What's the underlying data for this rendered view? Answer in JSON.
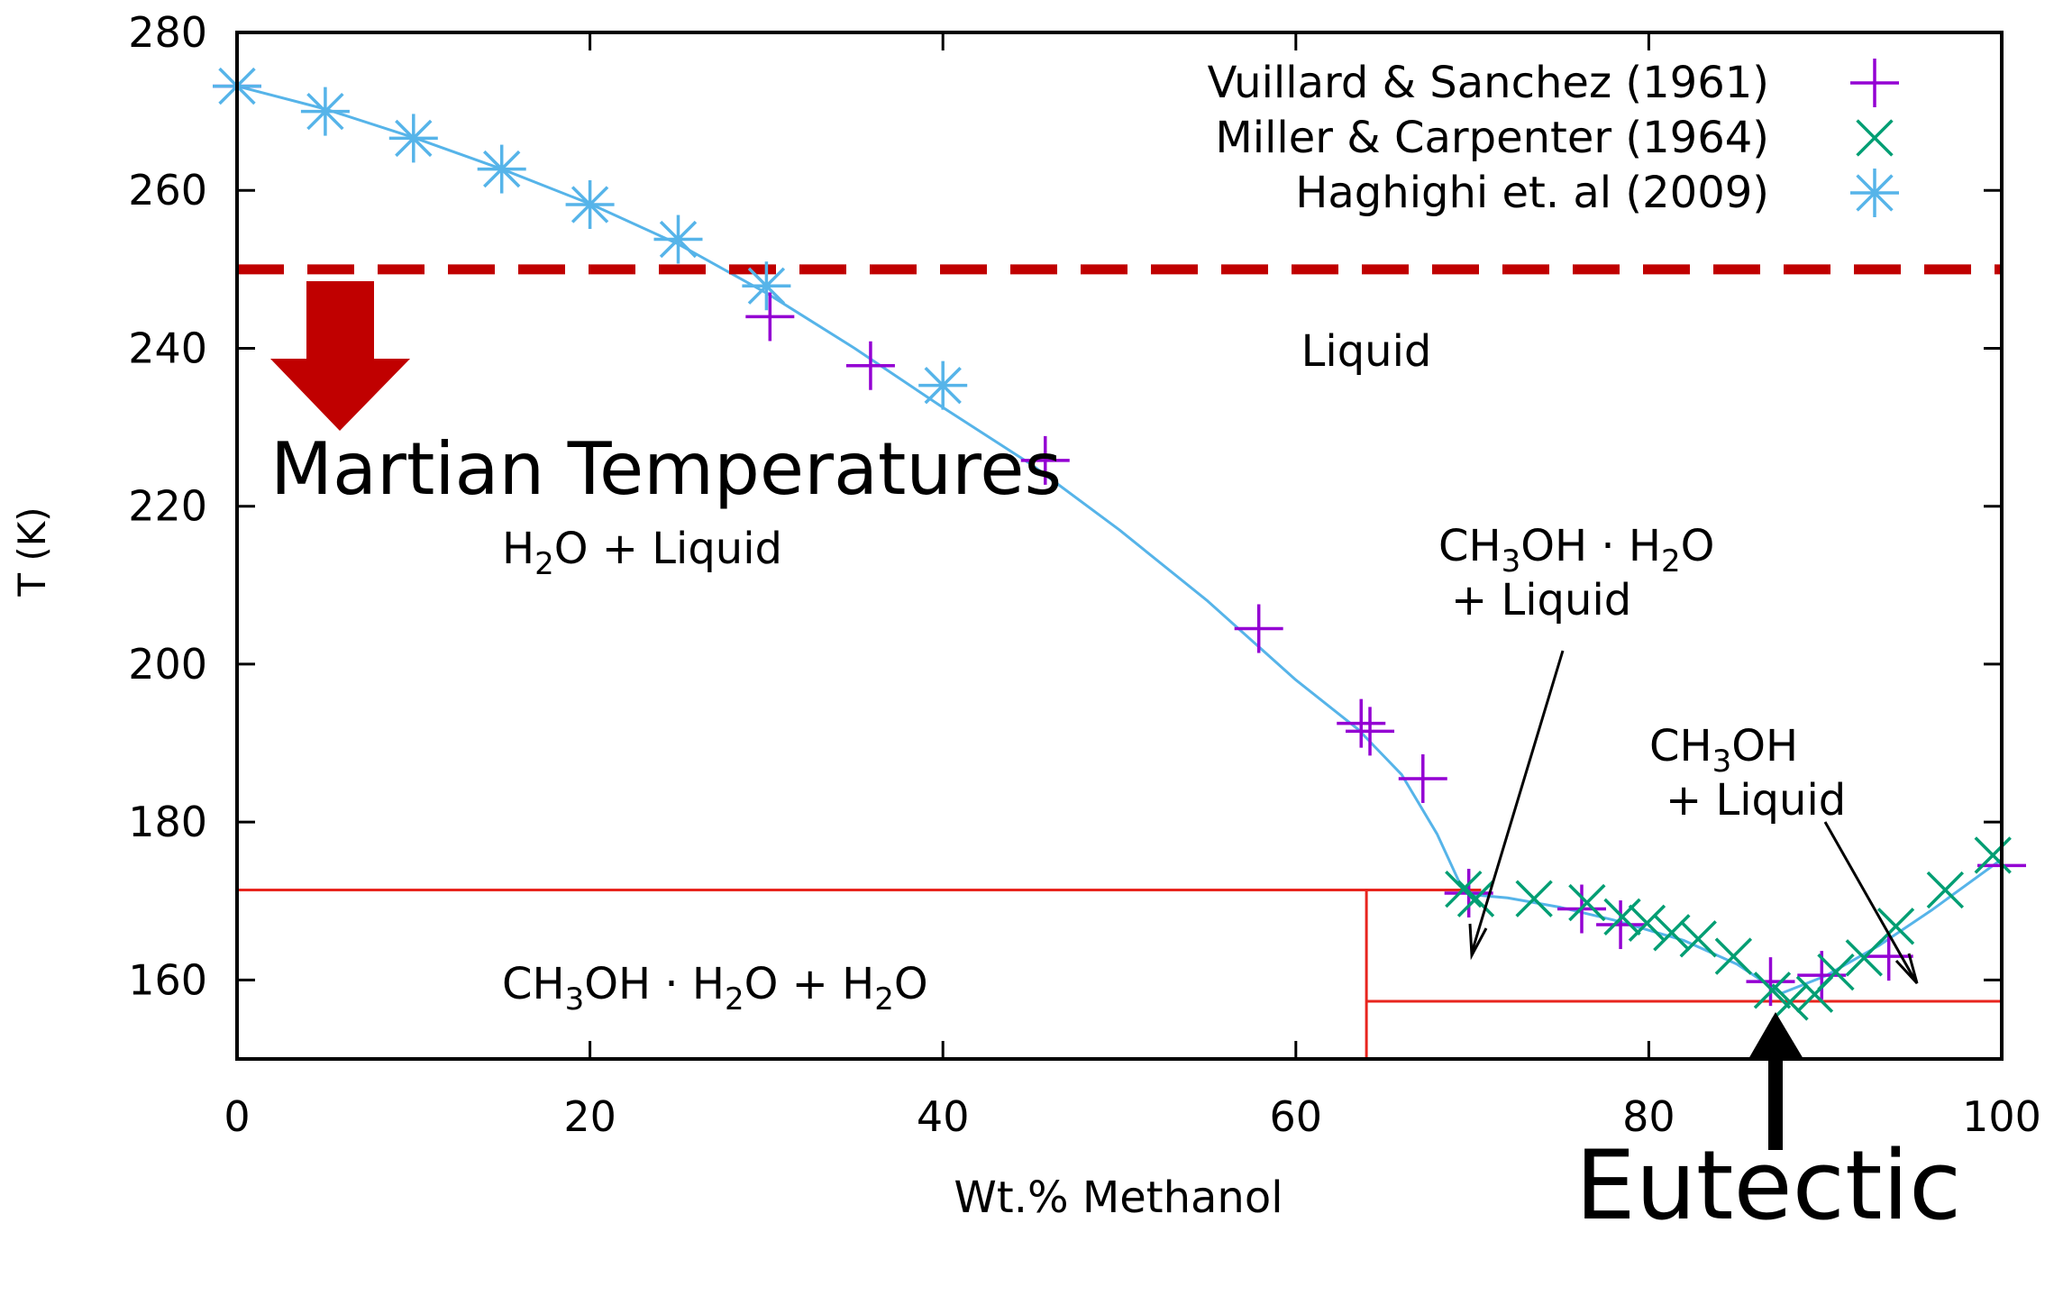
{
  "chart_data": {
    "type": "scatter",
    "xlabel": "Wt.% Methanol",
    "ylabel": "T (K)",
    "xlim": [
      0,
      100
    ],
    "ylim": [
      150,
      280
    ],
    "xticks": [
      0,
      20,
      40,
      60,
      80,
      100
    ],
    "yticks": [
      160,
      180,
      200,
      220,
      240,
      260,
      280
    ],
    "xtick_labels": [
      "0",
      "20",
      "40",
      "60",
      "80",
      "100"
    ],
    "ytick_labels": [
      "160",
      "180",
      "200",
      "220",
      "240",
      "260",
      "280"
    ],
    "legend_position": "top-right",
    "series": [
      {
        "name": "Vuillard & Sanchez (1961)",
        "marker": "plus",
        "color": "#9400d3",
        "x": [
          0,
          30.2,
          35.9,
          45.8,
          57.9,
          63.7,
          64.2,
          67.2,
          69.8,
          76.2,
          78.4,
          86.9,
          89.8,
          93.6,
          100
        ],
        "y": [
          273.2,
          244.0,
          237.8,
          225.8,
          204.5,
          192.5,
          191.5,
          185.5,
          171.0,
          169.0,
          167.0,
          159.8,
          160.6,
          163.0,
          174.5
        ]
      },
      {
        "name": "Miller & Carpenter (1964)",
        "marker": "x",
        "color": "#009e73",
        "x": [
          69.5,
          70.2,
          73.5,
          76.5,
          78.5,
          79.9,
          81.3,
          82.8,
          84.8,
          87.0,
          88.0,
          89.4,
          90.6,
          92.2,
          94.0,
          96.8,
          99.5
        ],
        "y": [
          171.5,
          170.3,
          170.3,
          169.8,
          168.0,
          167.2,
          166.0,
          165.2,
          163.0,
          158.7,
          157.2,
          158.2,
          161.0,
          162.8,
          166.8,
          171.4,
          175.8
        ]
      },
      {
        "name": "Haghighi et. al (2009)",
        "marker": "asterisk",
        "color": "#56b4e9",
        "x": [
          0,
          5,
          10,
          15,
          20,
          25,
          30,
          40
        ],
        "y": [
          273.2,
          270.0,
          266.6,
          262.7,
          258.2,
          253.8,
          247.9,
          235.3
        ]
      }
    ],
    "fit_curve": {
      "color": "#56b4e9",
      "x": [
        0,
        5,
        10,
        15,
        20,
        25,
        30,
        35,
        40,
        45,
        50,
        55,
        60,
        63.5,
        66,
        68,
        69.3,
        70,
        72,
        75,
        78,
        82,
        85,
        87.5,
        90,
        93,
        96,
        100
      ],
      "y": [
        273.2,
        270.3,
        266.7,
        262.7,
        258.3,
        253.2,
        247.0,
        240.0,
        232.5,
        225.3,
        217.0,
        208.0,
        198.0,
        191.8,
        186.0,
        178.5,
        172.2,
        170.8,
        170.4,
        169.2,
        167.6,
        165.0,
        162.0,
        158.3,
        160.5,
        164.3,
        168.8,
        175.3
      ]
    },
    "phase_boundaries": [
      {
        "kind": "horizontal",
        "y": 171.4,
        "x_from": 0,
        "x_to": 70.5,
        "color": "#e8251e"
      },
      {
        "kind": "vertical",
        "x": 64,
        "y_from": 150,
        "y_to": 171.4,
        "color": "#e8251e"
      },
      {
        "kind": "horizontal",
        "y": 157.3,
        "x_from": 64,
        "x_to": 100,
        "color": "#e8251e"
      }
    ],
    "reference_line": {
      "y": 250,
      "style": "dashed",
      "color": "#c00000"
    },
    "annotations": {
      "liquid": "Liquid",
      "martian": "Martian Temperatures",
      "eutectic": "Eutectic",
      "h2o_liquid": {
        "a": "H",
        "sub": "2",
        "b": "O + Liquid"
      },
      "hydrate_h2o": {
        "a": "CH",
        "s1": "3",
        "b": "OH · H",
        "s2": "2",
        "c": "O + H",
        "s3": "2",
        "d": "O"
      },
      "hydrate_liquid_1": {
        "a": "CH",
        "s1": "3",
        "b": "OH · H",
        "s2": "2",
        "c": "O"
      },
      "hydrate_liquid_2": "+ Liquid",
      "methanol_liquid_1": {
        "a": "CH",
        "s1": "3",
        "b": "OH"
      },
      "methanol_liquid_2": "+ Liquid"
    }
  }
}
